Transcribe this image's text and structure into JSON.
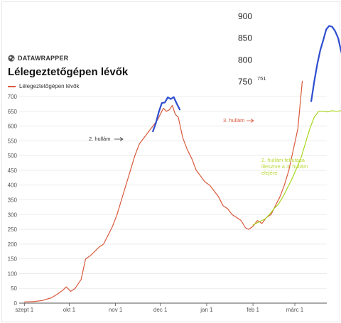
{
  "brand": {
    "name": "DATAWRAPPER",
    "icon": "globe-icon"
  },
  "chart_data": {
    "type": "line",
    "title": "Lélegeztetőgépen lévők",
    "xlabel": "",
    "ylabel": "",
    "ylim": [
      0,
      700
    ],
    "y_ticks": [
      0,
      50,
      100,
      150,
      200,
      250,
      300,
      350,
      400,
      450,
      500,
      550,
      600,
      650,
      700
    ],
    "x_ticks": [
      {
        "label": "szept 1",
        "day": 0
      },
      {
        "label": "okt 1",
        "day": 30
      },
      {
        "label": "nov 1",
        "day": 61
      },
      {
        "label": "dec 1",
        "day": 91
      },
      {
        "label": "jan 1",
        "day": 122
      },
      {
        "label": "feb 1",
        "day": 153
      },
      {
        "label": "márc 1",
        "day": 181
      }
    ],
    "inset_ticks": [
      750,
      800,
      850,
      900
    ],
    "legend": {
      "label": "Lélegeztetőgépen lévők",
      "color": "#d9593c"
    },
    "series": [
      {
        "name": "Lélegeztetőgépen lévők",
        "color": "#d9593c",
        "points": [
          [
            0,
            4
          ],
          [
            6,
            5
          ],
          [
            12,
            9
          ],
          [
            18,
            18
          ],
          [
            22,
            30
          ],
          [
            26,
            45
          ],
          [
            28,
            55
          ],
          [
            31,
            40
          ],
          [
            34,
            50
          ],
          [
            38,
            80
          ],
          [
            41,
            150
          ],
          [
            44,
            160
          ],
          [
            47,
            175
          ],
          [
            50,
            190
          ],
          [
            53,
            200
          ],
          [
            56,
            230
          ],
          [
            59,
            260
          ],
          [
            62,
            300
          ],
          [
            65,
            350
          ],
          [
            68,
            400
          ],
          [
            71,
            450
          ],
          [
            74,
            500
          ],
          [
            77,
            540
          ],
          [
            80,
            560
          ],
          [
            83,
            580
          ],
          [
            86,
            600
          ],
          [
            89,
            620
          ],
          [
            91,
            640
          ],
          [
            93,
            660
          ],
          [
            95,
            650
          ],
          [
            97,
            655
          ],
          [
            99,
            670
          ],
          [
            101,
            640
          ],
          [
            103,
            630
          ],
          [
            106,
            560
          ],
          [
            109,
            520
          ],
          [
            112,
            490
          ],
          [
            115,
            450
          ],
          [
            118,
            430
          ],
          [
            121,
            410
          ],
          [
            124,
            400
          ],
          [
            127,
            380
          ],
          [
            130,
            360
          ],
          [
            133,
            330
          ],
          [
            136,
            320
          ],
          [
            139,
            300
          ],
          [
            142,
            290
          ],
          [
            145,
            280
          ],
          [
            148,
            255
          ],
          [
            150,
            250
          ],
          [
            153,
            260
          ],
          [
            156,
            280
          ],
          [
            159,
            270
          ],
          [
            162,
            290
          ],
          [
            165,
            300
          ],
          [
            168,
            330
          ],
          [
            171,
            360
          ],
          [
            174,
            400
          ],
          [
            177,
            450
          ],
          [
            180,
            520
          ],
          [
            183,
            590
          ],
          [
            186,
            751
          ]
        ]
      },
      {
        "name": "",
        "color": "#a8d61e",
        "points": [
          [
            153,
            265
          ],
          [
            157,
            275
          ],
          [
            161,
            285
          ],
          [
            164,
            300
          ],
          [
            167,
            320
          ],
          [
            170,
            335
          ],
          [
            173,
            360
          ],
          [
            176,
            390
          ],
          [
            179,
            420
          ],
          [
            182,
            455
          ],
          [
            185,
            490
          ],
          [
            188,
            540
          ],
          [
            191,
            590
          ],
          [
            194,
            630
          ],
          [
            197,
            650
          ],
          [
            200,
            650
          ],
          [
            203,
            648
          ],
          [
            206,
            652
          ],
          [
            209,
            650
          ],
          [
            212,
            652
          ],
          [
            215,
            648
          ],
          [
            218,
            640
          ],
          [
            221,
            620
          ],
          [
            224,
            590
          ],
          [
            227,
            560
          ],
          [
            230,
            530
          ],
          [
            233,
            510
          ],
          [
            236,
            500
          ],
          [
            239,
            480
          ],
          [
            242,
            470
          ],
          [
            245,
            460
          ]
        ]
      },
      {
        "name": "",
        "color": "#2e4ecf",
        "points": [
          [
            86,
            582
          ],
          [
            88,
            610
          ],
          [
            90,
            648
          ],
          [
            92,
            678
          ],
          [
            94,
            702
          ],
          [
            96,
            714
          ],
          [
            98,
            710
          ],
          [
            100,
            698
          ],
          [
            102,
            676
          ],
          [
            104,
            656
          ]
        ]
      },
      {
        "name": "",
        "color": "#2e4ecf",
        "points": [
          [
            192,
            705
          ],
          [
            194,
            750
          ],
          [
            196,
            790
          ],
          [
            198,
            822
          ],
          [
            200,
            845
          ],
          [
            202,
            870
          ],
          [
            204,
            878
          ],
          [
            206,
            876
          ],
          [
            208,
            866
          ],
          [
            210,
            850
          ],
          [
            212,
            820
          ],
          [
            214,
            796
          ]
        ]
      }
    ],
    "annotations": [
      {
        "id": "wave2",
        "text": "2. hullám",
        "color": "#333333"
      },
      {
        "id": "wave3",
        "text": "3. hullám",
        "color": "#d9593c"
      },
      {
        "id": "peak751",
        "text": "751",
        "color": "#333333"
      },
      {
        "id": "fit",
        "lines": [
          "2. hullám felfutása",
          "illesztve a 3. hullám",
          "elejére"
        ],
        "color": "#b9d838"
      }
    ]
  }
}
